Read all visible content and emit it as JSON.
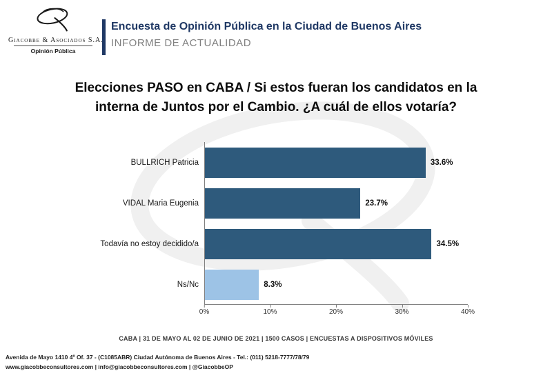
{
  "header": {
    "logo_company": "Giacobbe & Asociados S.A.",
    "logo_tagline": "Opinión Pública",
    "title": "Encuesta de Opinión Pública en la Ciudad de Buenos Aires",
    "subtitle": "INFORME DE ACTUALIDAD"
  },
  "question": "Elecciones PASO en CABA / Si estos fueran los candidatos en la interna de Juntos por el Cambio. ¿A cuál de ellos votaría?",
  "chart_data": {
    "type": "bar",
    "orientation": "horizontal",
    "title": "Elecciones PASO en CABA / Si estos fueran los candidatos en la interna de Juntos por el Cambio. ¿A cuál de ellos votaría?",
    "categories": [
      "BULLRICH Patricia",
      "VIDAL Maria Eugenia",
      "Todavía no estoy decidido/a",
      "Ns/Nc"
    ],
    "values": [
      33.6,
      23.7,
      34.5,
      8.3
    ],
    "value_labels": [
      "33.6%",
      "23.7%",
      "34.5%",
      "8.3%"
    ],
    "bar_colors": [
      "#2E5A7C",
      "#2E5A7C",
      "#2E5A7C",
      "#9DC3E6"
    ],
    "xlim": [
      0,
      40
    ],
    "x_ticks": [
      "0%",
      "10%",
      "20%",
      "30%",
      "40%"
    ],
    "xlabel": "",
    "ylabel": "",
    "grid": false,
    "legend_position": "none"
  },
  "footnote": "CABA | 31 DE MAYO AL 02 DE JUNIO DE 2021 | 1500 CASOS | ENCUESTAS A DISPOSITIVOS MÓVILES",
  "footer": {
    "line1": "Avenida de Mayo 1410 4º Of. 37 - (C1085ABR) Ciudad Autónoma de Buenos Aires - Tel.: (011) 5218-7777/78/79",
    "line2": "www.giacobbeconsultores.com | info@giacobbeconsultores.com | @GiacobbeOP"
  },
  "colors": {
    "navy": "#1F3864",
    "bar_dark": "#2E5A7C",
    "bar_light": "#9DC3E6",
    "axis": "#7F7F7F",
    "subtitle_gray": "#808080"
  }
}
